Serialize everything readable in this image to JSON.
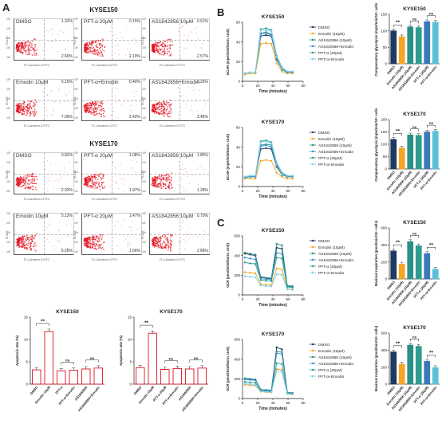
{
  "panels": {
    "A": "A",
    "B": "B",
    "C": "C"
  },
  "flow": {
    "group_titles": [
      "KYSE150",
      "KYSE170"
    ],
    "ylabel": "FL3-PI",
    "xlabel": "FL1-Annexin-V-FITC",
    "y_ticks": [
      "10⁵",
      "10⁴",
      "10³",
      "10²",
      "10¹"
    ],
    "plots": [
      {
        "group": 0,
        "title": "DMSO",
        "tr": "1.32%",
        "br": "2.50%"
      },
      {
        "group": 0,
        "title": "PFT-α 20μM",
        "tr": "0.15%",
        "br": "2.10%"
      },
      {
        "group": 0,
        "title": "AS1842856 10μM",
        "tr": "0.61%",
        "br": "2.57%"
      },
      {
        "group": 0,
        "title": "Emodin 10μM",
        "tr": "5.15%",
        "br": "7.09%"
      },
      {
        "group": 0,
        "title": "PFT-α+Emodin",
        "tr": "0.40%",
        "br": "2.42%"
      },
      {
        "group": 0,
        "title": "AS1842856+Emodin",
        "tr": "0.26%",
        "br": "3.45%"
      },
      {
        "group": 1,
        "title": "DMSO",
        "tr": "0.82%",
        "br": "2.92%"
      },
      {
        "group": 1,
        "title": "PFT-α 20μM",
        "tr": "1.08%",
        "br": "1.97%"
      },
      {
        "group": 1,
        "title": "AS1842856 10μM",
        "tr": "1.85%",
        "br": "1.28%"
      },
      {
        "group": 1,
        "title": "Emodin 10μM",
        "tr": "5.12%",
        "br": "6.25%"
      },
      {
        "group": 1,
        "title": "PFT-α 20μM",
        "tr": "1.47%",
        "br": "1.56%"
      },
      {
        "group": 1,
        "title": "AS1842856 10μM",
        "tr": "0.70%",
        "br": "2.66%"
      }
    ]
  },
  "colors": {
    "red": "#e3101e",
    "orange": "#f5a623",
    "navy": "#1f3a5f",
    "teal": "#2a8f86",
    "blue": "#3a78b8",
    "cyan": "#5bc0d8"
  },
  "chart_data": [
    {
      "type": "bar",
      "id": "apop150",
      "title": "KYSE150",
      "ylabel": "Apoptosis rate (%)",
      "ylim": [
        0,
        15
      ],
      "yticks": [
        0,
        5,
        10,
        15
      ],
      "categories": [
        "DMSO",
        "Emodin 10μM",
        "PFT-α",
        "PFT-α+Emodin",
        "AS1842856",
        "AS1842856+Emodin"
      ],
      "values": [
        3.2,
        11.8,
        3.0,
        3.1,
        3.4,
        3.6
      ],
      "sig": [
        {
          "from": 0,
          "to": 1,
          "label": "**"
        },
        {
          "from": 2,
          "to": 3,
          "label": "ns"
        },
        {
          "from": 4,
          "to": 5,
          "label": "ns"
        }
      ]
    },
    {
      "type": "bar",
      "id": "apop170",
      "title": "KYSE170",
      "ylabel": "Apoptosis rate (%)",
      "ylim": [
        0,
        15
      ],
      "yticks": [
        0,
        5,
        10,
        15
      ],
      "categories": [
        "DMSO",
        "Emodin 10μM",
        "PFT-α 20μM",
        "PFT-α+Emodin",
        "AS1842856",
        "AS1842856+Emodin"
      ],
      "values": [
        3.7,
        11.4,
        3.3,
        3.5,
        3.4,
        3.6
      ],
      "sig": [
        {
          "from": 0,
          "to": 1,
          "label": "**"
        },
        {
          "from": 2,
          "to": 3,
          "label": "ns"
        },
        {
          "from": 4,
          "to": 5,
          "label": "ns"
        }
      ]
    },
    {
      "type": "line",
      "id": "ecar150",
      "title": "KYSE150",
      "ylabel": "ECAR (mpH/min/Norm. Unit)",
      "xlabel": "Time (minutes)",
      "xlim": [
        0,
        80
      ],
      "xticks": [
        0,
        20,
        40,
        60,
        80
      ],
      "ylim": [
        0,
        60
      ],
      "yticks": [
        0,
        20,
        40,
        60
      ],
      "x": [
        3,
        10,
        17,
        24,
        31,
        38,
        45,
        52,
        59,
        66
      ],
      "series": [
        {
          "name": "DMSO",
          "values": [
            8,
            9,
            9,
            46,
            47,
            46,
            22,
            12,
            9,
            9
          ]
        },
        {
          "name": "Emodin (10μM)",
          "values": [
            7,
            8,
            8,
            38,
            39,
            38,
            18,
            10,
            8,
            8
          ]
        },
        {
          "name": "AS1842856 (10μM)",
          "values": [
            8,
            9,
            9,
            49,
            50,
            48,
            24,
            13,
            9,
            9
          ]
        },
        {
          "name": "AS1842856+Emodin",
          "values": [
            8,
            9,
            9,
            48,
            49,
            47,
            23,
            12,
            9,
            9
          ]
        },
        {
          "name": "PFT-α (20μM)",
          "values": [
            8,
            9,
            9,
            53,
            54,
            52,
            26,
            14,
            10,
            10
          ]
        },
        {
          "name": "PFT-α+Emodin",
          "values": [
            8,
            9,
            9,
            52,
            52,
            51,
            25,
            13,
            10,
            10
          ]
        }
      ]
    },
    {
      "type": "line",
      "id": "ecar170",
      "title": "KYSE170",
      "ylabel": "ECAR (mpH/min/Norm. Unit)",
      "xlabel": "Time (minutes)",
      "xlim": [
        0,
        80
      ],
      "xticks": [
        0,
        20,
        40,
        60,
        80
      ],
      "ylim": [
        0,
        60
      ],
      "yticks": [
        0,
        20,
        40,
        60
      ],
      "x": [
        3,
        10,
        17,
        24,
        31,
        38,
        45,
        52,
        59,
        66
      ],
      "series": [
        {
          "name": "DMSO",
          "values": [
            9,
            10,
            10,
            38,
            39,
            38,
            20,
            12,
            10,
            10
          ]
        },
        {
          "name": "Emodin (10μM)",
          "values": [
            8,
            8,
            8,
            26,
            27,
            26,
            14,
            10,
            8,
            8
          ]
        },
        {
          "name": "AS1842856 (10μM)",
          "values": [
            9,
            10,
            10,
            42,
            43,
            42,
            22,
            13,
            10,
            10
          ]
        },
        {
          "name": "AS1842856+Emodin",
          "values": [
            9,
            10,
            10,
            41,
            42,
            40,
            21,
            12,
            10,
            10
          ]
        },
        {
          "name": "PFT-α (20μM)",
          "values": [
            10,
            11,
            11,
            46,
            47,
            45,
            24,
            14,
            11,
            11
          ]
        },
        {
          "name": "PFT-α+Emodin",
          "values": [
            10,
            11,
            11,
            45,
            46,
            44,
            23,
            13,
            11,
            11
          ]
        }
      ]
    },
    {
      "type": "bar",
      "id": "cg150",
      "title": "KYSE150",
      "ylabel": "Compensatory glycolysis (mpH/min/10⁴ cells)",
      "ylim": [
        0,
        150
      ],
      "yticks": [
        0,
        50,
        100,
        150
      ],
      "categories": [
        "DMSO",
        "Emodin (10μM)",
        "AS1842856 (10μM)",
        "AS1842856+Emodin",
        "PFT-α (20μM)",
        "PFT-α+Emodin"
      ],
      "values": [
        100,
        82,
        112,
        110,
        128,
        126
      ],
      "sig": [
        {
          "from": 0,
          "to": 1,
          "label": "**"
        },
        {
          "from": 2,
          "to": 3,
          "label": "ns"
        },
        {
          "from": 4,
          "to": 5,
          "label": "ns"
        }
      ]
    },
    {
      "type": "bar",
      "id": "cg170",
      "title": "KYSE170",
      "ylabel": "Compensatory glycolysis (mpH/min/10⁴ cells)",
      "ylim": [
        0,
        200
      ],
      "yticks": [
        0,
        50,
        100,
        150,
        200
      ],
      "categories": [
        "DMSO",
        "Emodin (10μM)",
        "AS1842856 (10μM)",
        "AS1842856+Emodin",
        "PFT-α (20μM)",
        "PFT-α+Emodin"
      ],
      "values": [
        120,
        85,
        138,
        136,
        150,
        153
      ],
      "sig": [
        {
          "from": 0,
          "to": 1,
          "label": "**"
        },
        {
          "from": 2,
          "to": 3,
          "label": "ns"
        },
        {
          "from": 4,
          "to": 5,
          "label": "ns"
        }
      ]
    },
    {
      "type": "line",
      "id": "ocr150",
      "title": "KYSE150",
      "ylabel": "OCR (pmol/min/Norm. Unit)",
      "xlabel": "Time (minutes)",
      "xlim": [
        0,
        80
      ],
      "xticks": [
        0,
        20,
        40,
        60,
        80
      ],
      "ylim": [
        0,
        600
      ],
      "yticks": [
        0,
        200,
        400,
        600
      ],
      "x": [
        3,
        10,
        17,
        24,
        31,
        38,
        45,
        52,
        59,
        66
      ],
      "series": [
        {
          "name": "DMSO",
          "values": [
            420,
            410,
            400,
            180,
            170,
            165,
            480,
            470,
            90,
            85
          ]
        },
        {
          "name": "Emodin (10μM)",
          "values": [
            230,
            225,
            220,
            110,
            105,
            100,
            270,
            260,
            60,
            55
          ]
        },
        {
          "name": "AS1842856 (10μM)",
          "values": [
            430,
            420,
            410,
            185,
            175,
            170,
            520,
            505,
            95,
            90
          ]
        },
        {
          "name": "AS1842856+Emodin",
          "values": [
            380,
            370,
            360,
            165,
            160,
            155,
            430,
            420,
            85,
            80
          ]
        },
        {
          "name": "PFT-α (20μM)",
          "values": [
            330,
            320,
            315,
            150,
            145,
            140,
            380,
            370,
            80,
            75
          ]
        },
        {
          "name": "PFT-α+Emodin",
          "values": [
            190,
            185,
            180,
            95,
            90,
            88,
            210,
            205,
            55,
            50
          ]
        }
      ]
    },
    {
      "type": "line",
      "id": "ocr170",
      "title": "KYSE170",
      "ylabel": "OCR (pmol/min/Norm. Unit)",
      "xlabel": "Time (minutes)",
      "xlim": [
        0,
        80
      ],
      "xticks": [
        0,
        20,
        40,
        60,
        80
      ],
      "ylim": [
        0,
        600
      ],
      "yticks": [
        0,
        200,
        400,
        600
      ],
      "x": [
        3,
        10,
        17,
        24,
        31,
        38,
        45,
        52,
        59,
        66
      ],
      "series": [
        {
          "name": "DMSO",
          "values": [
            200,
            195,
            190,
            90,
            85,
            80,
            520,
            500,
            60,
            55
          ]
        },
        {
          "name": "Emodin (10μM)",
          "values": [
            140,
            135,
            130,
            70,
            65,
            62,
            300,
            290,
            45,
            40
          ]
        },
        {
          "name": "AS1842856 (10μM)",
          "values": [
            205,
            200,
            195,
            92,
            88,
            85,
            480,
            470,
            62,
            58
          ]
        },
        {
          "name": "AS1842856+Emodin",
          "values": [
            195,
            190,
            185,
            88,
            84,
            80,
            460,
            450,
            60,
            55
          ]
        },
        {
          "name": "PFT-α (20μM)",
          "values": [
            170,
            165,
            160,
            80,
            76,
            72,
            360,
            350,
            55,
            50
          ]
        },
        {
          "name": "PFT-α+Emodin",
          "values": [
            150,
            145,
            140,
            72,
            68,
            65,
            280,
            270,
            48,
            44
          ]
        }
      ]
    },
    {
      "type": "bar",
      "id": "mr150",
      "title": "KYSE150",
      "ylabel": "Maximal respiration (pmol/min/10⁴ cells)",
      "ylim": [
        0,
        600
      ],
      "yticks": [
        0,
        200,
        400,
        600
      ],
      "categories": [
        "DMSO",
        "Emodin (10μM)",
        "AS1842856 (10μM)",
        "AS1842856+Emodin",
        "PFT-α (20μM)",
        "PFT-α+Emodin"
      ],
      "values": [
        330,
        175,
        440,
        390,
        300,
        115
      ],
      "sig": [
        {
          "from": 0,
          "to": 1,
          "label": "**"
        },
        {
          "from": 2,
          "to": 3,
          "label": "ns"
        },
        {
          "from": 4,
          "to": 5,
          "label": "**"
        }
      ]
    },
    {
      "type": "bar",
      "id": "mr170",
      "title": "KYSE170",
      "ylabel": "Maximal respiration (pmol/min/10⁴ cells)",
      "ylim": [
        0,
        600
      ],
      "yticks": [
        0,
        200,
        400,
        600
      ],
      "categories": [
        "DMSO",
        "Emodin (10μM)",
        "AS1842856 (10μM)",
        "AS1842856+Emodin",
        "PFT-α (20μM)",
        "PFT-α+Emodin"
      ],
      "values": [
        380,
        235,
        460,
        445,
        270,
        195
      ],
      "sig": [
        {
          "from": 0,
          "to": 1,
          "label": "**"
        },
        {
          "from": 2,
          "to": 3,
          "label": "ns"
        },
        {
          "from": 4,
          "to": 5,
          "label": "**"
        }
      ]
    }
  ]
}
